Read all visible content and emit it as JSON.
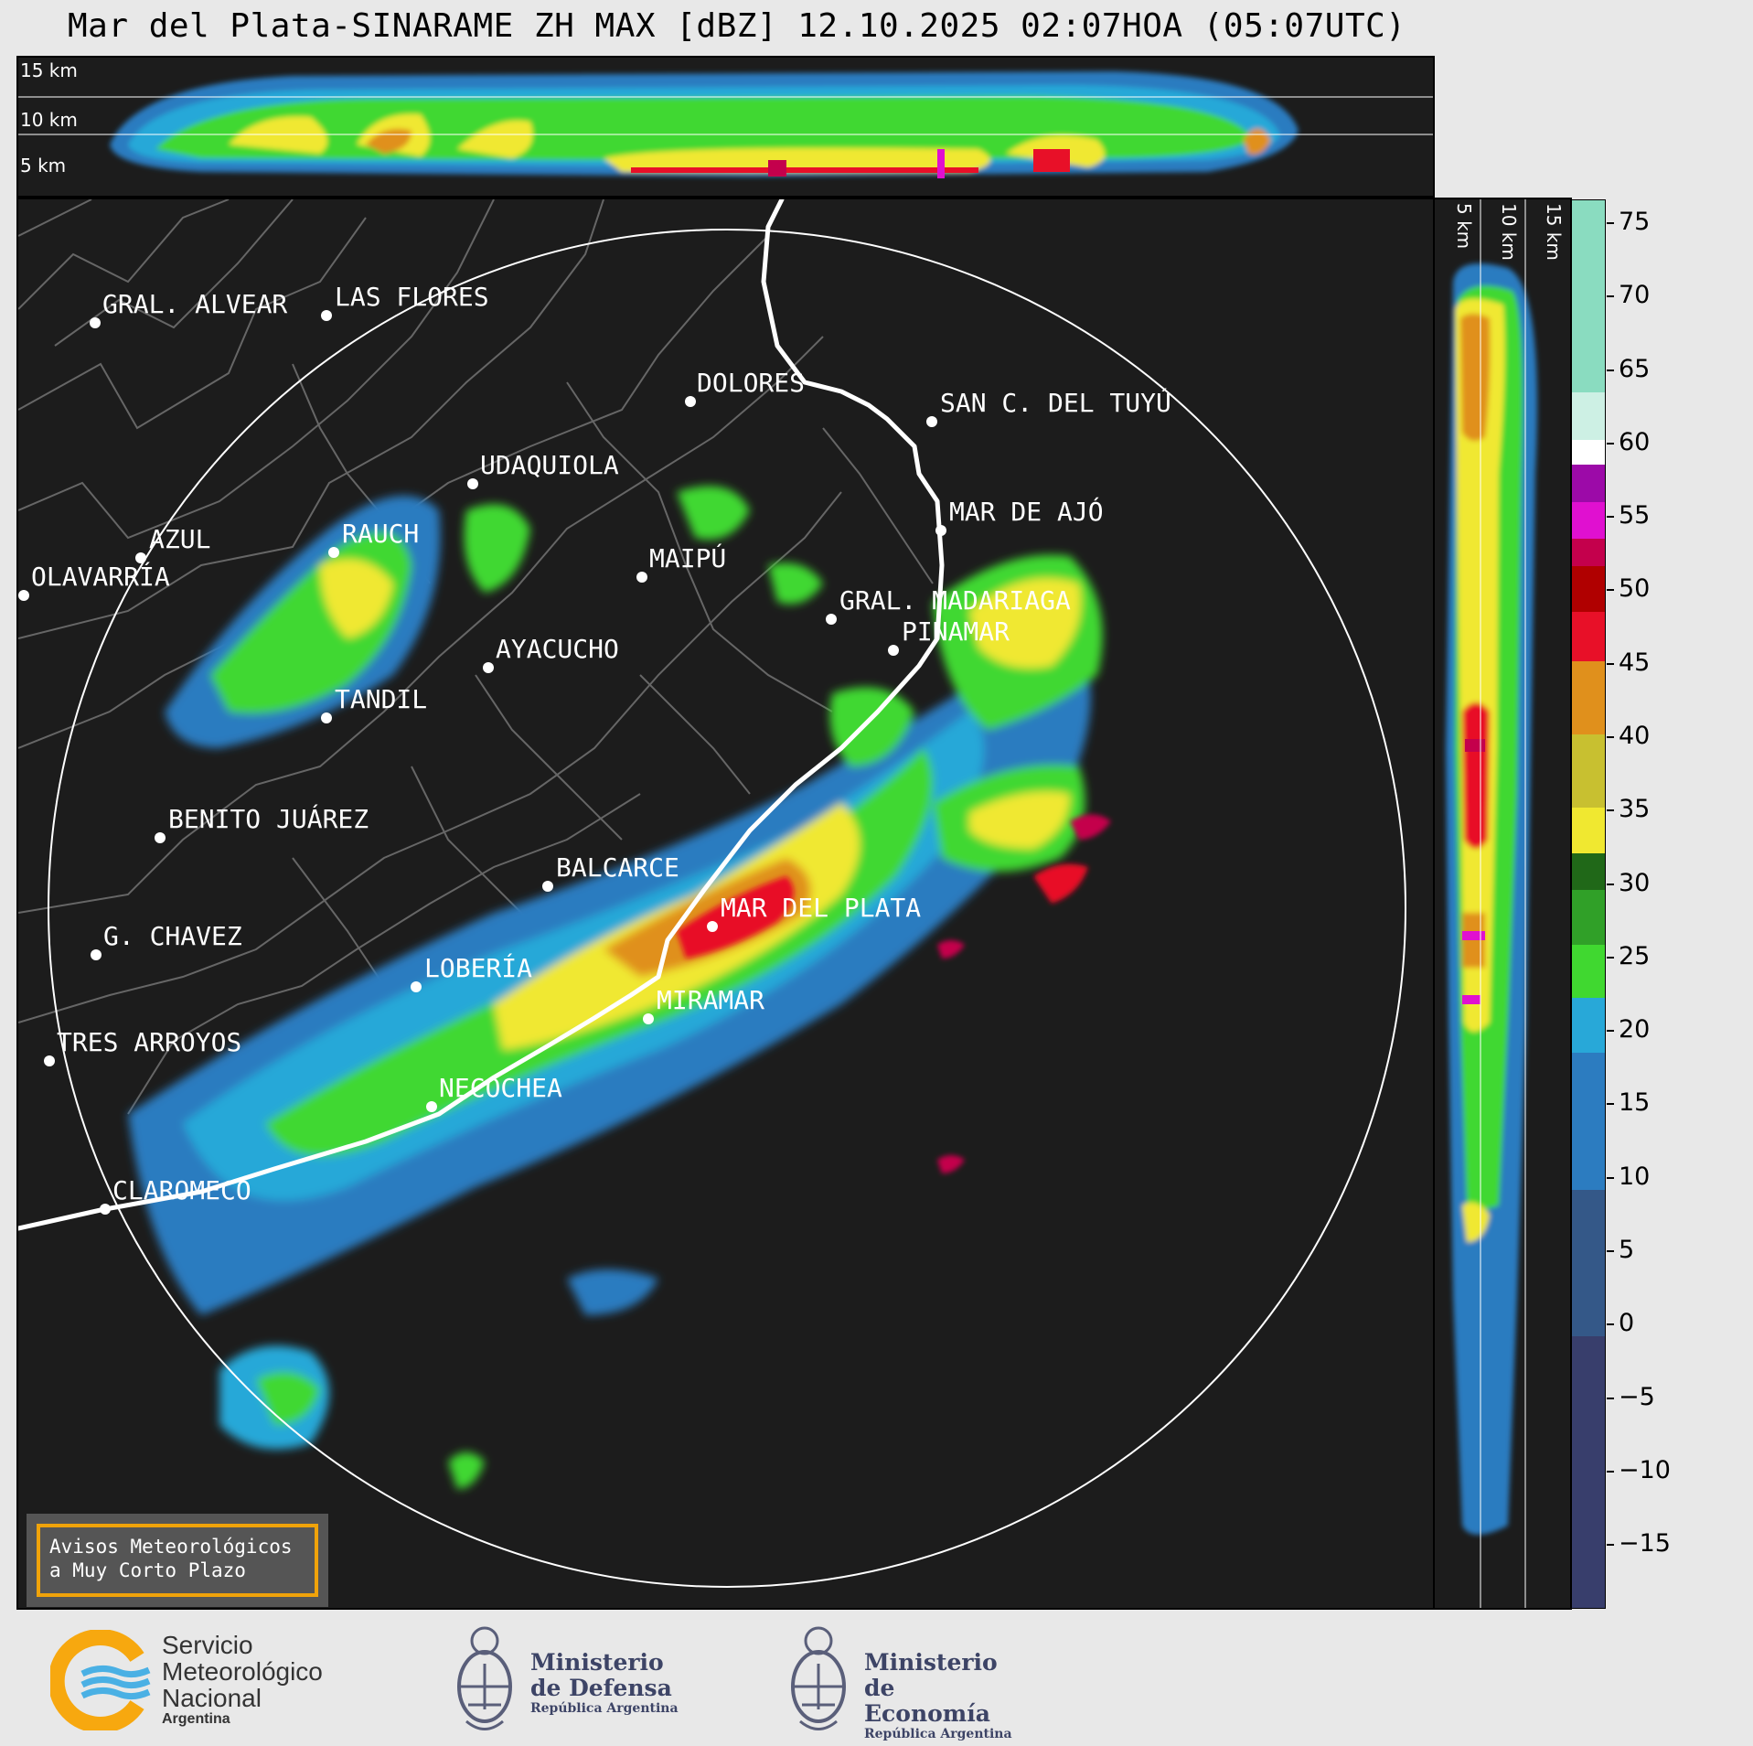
{
  "title": "Mar del Plata-SINARAME ZH MAX [dBZ] 12.10.2025 02:07HOA (05:07UTC)",
  "top_panel": {
    "altitude_labels": [
      "15 km",
      "10 km",
      "5 km"
    ]
  },
  "right_panel": {
    "altitude_labels": [
      "5 km",
      "10 km",
      "15 km"
    ]
  },
  "colorbar": {
    "unit": "dBZ",
    "ticks": [
      "75",
      "70",
      "65",
      "60",
      "55",
      "50",
      "45",
      "40",
      "35",
      "30",
      "25",
      "20",
      "15",
      "10",
      "5",
      "0",
      "−5",
      "−10",
      "−15"
    ],
    "range": [
      -20,
      77
    ],
    "colors": {
      "teal": "#8adcc0",
      "white": "#ffffff",
      "purple": "#9c0aa8",
      "magenta": "#e010d0",
      "crimson": "#c4004c",
      "darkred": "#b00000",
      "red": "#e81028",
      "orange": "#e0901c",
      "yellow": "#f0e830",
      "darkgreen": "#206818",
      "green": "#40d830",
      "cyan": "#28a8d8",
      "blue": "#2c7cc0",
      "slate": "#345888",
      "navy": "#383e6c"
    }
  },
  "map": {
    "background": "#1c1c1c",
    "range_ring_color": "#ffffff",
    "cities": [
      {
        "name": "GRAL. ALVEAR"
      },
      {
        "name": "LAS FLORES"
      },
      {
        "name": "DOLORES"
      },
      {
        "name": "SAN C. DEL TUYÚ"
      },
      {
        "name": "UDAQUIOLA"
      },
      {
        "name": "MAR DE AJÓ"
      },
      {
        "name": "AZUL"
      },
      {
        "name": "RAUCH"
      },
      {
        "name": "MAIPÚ"
      },
      {
        "name": "OLAVARRÍA"
      },
      {
        "name": "GRAL. MADARIAGA"
      },
      {
        "name": "PINAMAR"
      },
      {
        "name": "AYACUCHO"
      },
      {
        "name": "TANDIL"
      },
      {
        "name": "BENITO JUÁREZ"
      },
      {
        "name": "BALCARCE"
      },
      {
        "name": "MAR DEL PLATA"
      },
      {
        "name": "G. CHAVEZ"
      },
      {
        "name": "LOBERÍA"
      },
      {
        "name": "MIRAMAR"
      },
      {
        "name": "TRES ARROYOS"
      },
      {
        "name": "NECOCHEA"
      },
      {
        "name": "CLAROMECÓ"
      }
    ]
  },
  "avisos": {
    "line1": "Avisos Meteorológicos",
    "line2": "a Muy Corto Plazo"
  },
  "footer": {
    "smn": {
      "line1": "Servicio",
      "line2": "Meteorológico",
      "line3": "Nacional",
      "sub": "Argentina"
    },
    "defensa": {
      "line1": "Ministerio",
      "line2": "de Defensa",
      "sub": "República Argentina"
    },
    "economia": {
      "line1": "Ministerio",
      "line2": "de Economía",
      "sub": "República Argentina"
    }
  }
}
